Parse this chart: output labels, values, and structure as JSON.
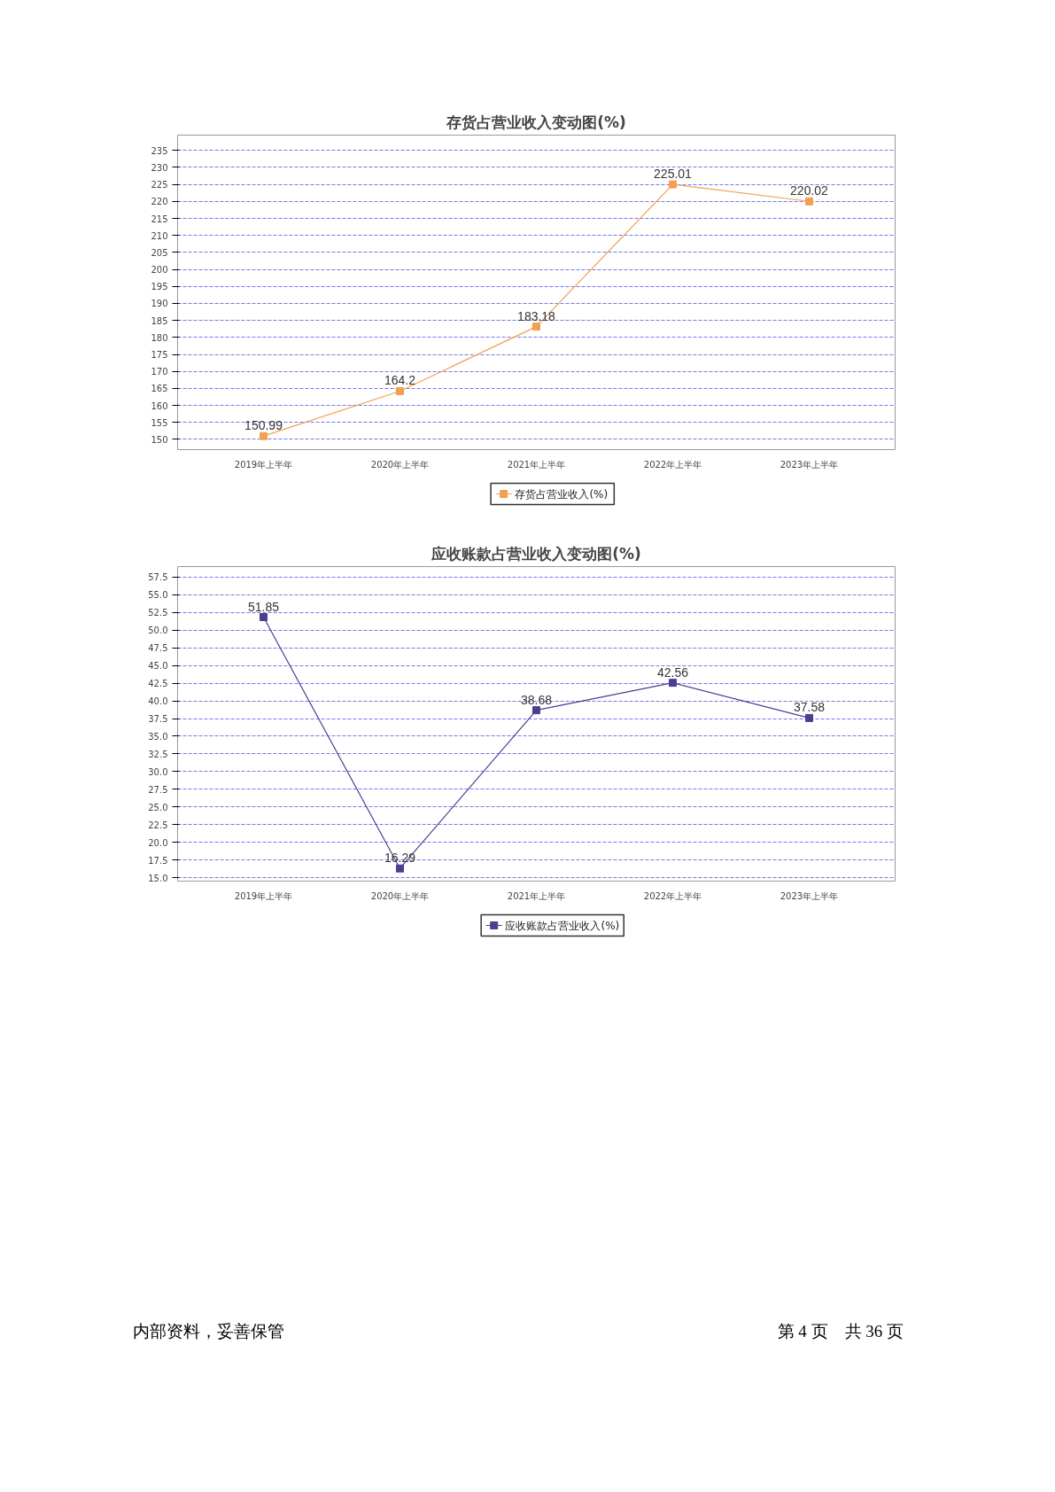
{
  "chart_data": [
    {
      "type": "line",
      "title": "存货占营业收入变动图(%)",
      "categories": [
        "2019年上半年",
        "2020年上半年",
        "2021年上半年",
        "2022年上半年",
        "2023年上半年"
      ],
      "series": [
        {
          "name": "存货占营业收入(%)",
          "color": "#f0a050",
          "values": [
            150.99,
            164.2,
            183.18,
            225.01,
            220.02
          ]
        }
      ],
      "ylim": [
        147,
        239.5
      ],
      "yticks": [
        150,
        155,
        160,
        165,
        170,
        175,
        180,
        185,
        190,
        195,
        200,
        205,
        210,
        215,
        220,
        225,
        230,
        235
      ],
      "grid": "y",
      "legend": "bottom",
      "marker": "square",
      "data_labels": true
    },
    {
      "type": "line",
      "title": "应收账款占营业收入变动图(%)",
      "categories": [
        "2019年上半年",
        "2020年上半年",
        "2021年上半年",
        "2022年上半年",
        "2023年上半年"
      ],
      "series": [
        {
          "name": "应收账款占营业收入(%)",
          "color": "#4b3f8f",
          "values": [
            51.85,
            16.29,
            38.68,
            42.56,
            37.58
          ]
        }
      ],
      "ylim": [
        14.5,
        59
      ],
      "yticks": [
        {
          "value": 15,
          "label": "15.0"
        },
        {
          "value": 17.5,
          "label": "17.5"
        },
        {
          "value": 20,
          "label": "20.0"
        },
        {
          "value": 22.5,
          "label": "22.5"
        },
        {
          "value": 25,
          "label": "25.0"
        },
        {
          "value": 27.5,
          "label": "27.5"
        },
        {
          "value": 30,
          "label": "30.0"
        },
        {
          "value": 32.5,
          "label": "32.5"
        },
        {
          "value": 35,
          "label": "35.0"
        },
        {
          "value": 37.5,
          "label": "37.5"
        },
        {
          "value": 40,
          "label": "40.0"
        },
        {
          "value": 42.5,
          "label": "42.5"
        },
        {
          "value": 45,
          "label": "45.0"
        },
        {
          "value": 47.5,
          "label": "47.5"
        },
        {
          "value": 50,
          "label": "50.0"
        },
        {
          "value": 52.5,
          "label": "52.5"
        },
        {
          "value": 55,
          "label": "55.0"
        },
        {
          "value": 57.5,
          "label": "57.5"
        }
      ],
      "grid": "y",
      "legend": "bottom",
      "marker": "square",
      "data_labels": true,
      "annotations": [
        "内部资料，妥善保管",
        "第 4 页　共 36 页"
      ]
    }
  ]
}
